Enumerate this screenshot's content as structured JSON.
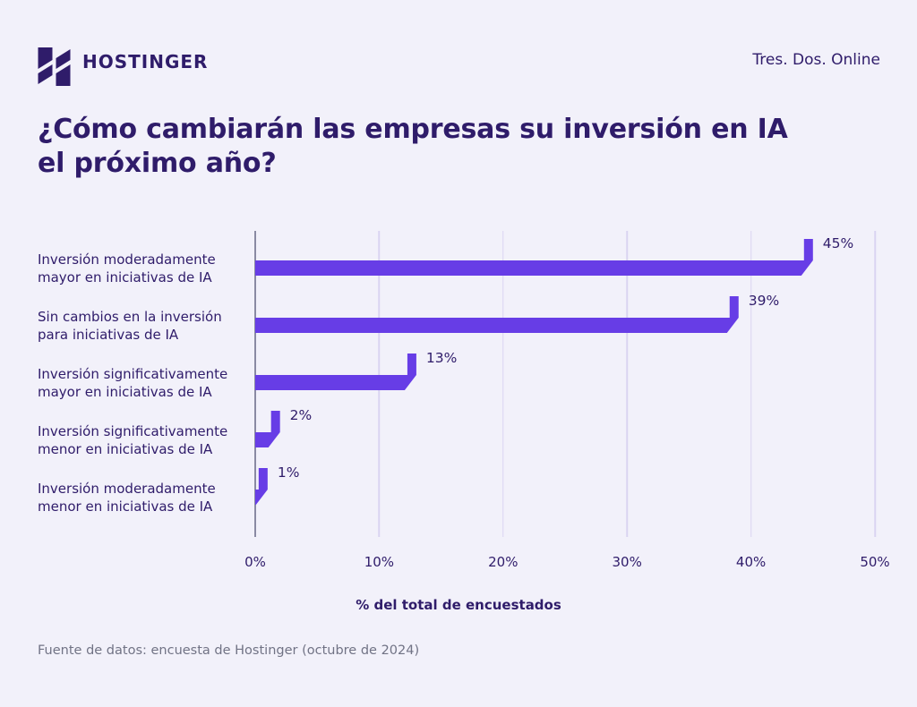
{
  "header": {
    "brand": "HOSTINGER",
    "tagline": "Tres. Dos. Online",
    "brand_color": "#2F1C6A"
  },
  "title": "¿Cómo cambiarán las empresas su inversión en IA\nel próximo año?",
  "chart_data": {
    "type": "bar",
    "orientation": "horizontal",
    "title": "¿Cómo cambiarán las empresas su inversión en IA el próximo año?",
    "categories": [
      "Inversión moderadamente\nmayor en iniciativas de IA",
      "Sin cambios en la inversión\npara iniciativas de IA",
      "Inversión significativamente\nmayor en iniciativas de IA",
      "Inversión significativamente\nmenor en iniciativas de IA",
      "Inversión moderadamente\nmenor en iniciativas de IA"
    ],
    "values": [
      45,
      39,
      13,
      2,
      1
    ],
    "value_labels": [
      "45%",
      "39%",
      "13%",
      "2%",
      "1%"
    ],
    "xlabel": "% del total de encuestados",
    "x_ticks": [
      "0%",
      "10%",
      "20%",
      "30%",
      "40%",
      "50%"
    ],
    "xlim": [
      0,
      50
    ],
    "grid": true,
    "legend": false,
    "colors": {
      "bar": "#673DE6",
      "gridline": "#D9D4F1",
      "axis_line": "#8A8AA3",
      "text": "#2F1C6A",
      "background": "#F2F1FA"
    }
  },
  "footer": {
    "source": "Fuente de datos: encuesta de Hostinger (octubre de 2024)"
  }
}
